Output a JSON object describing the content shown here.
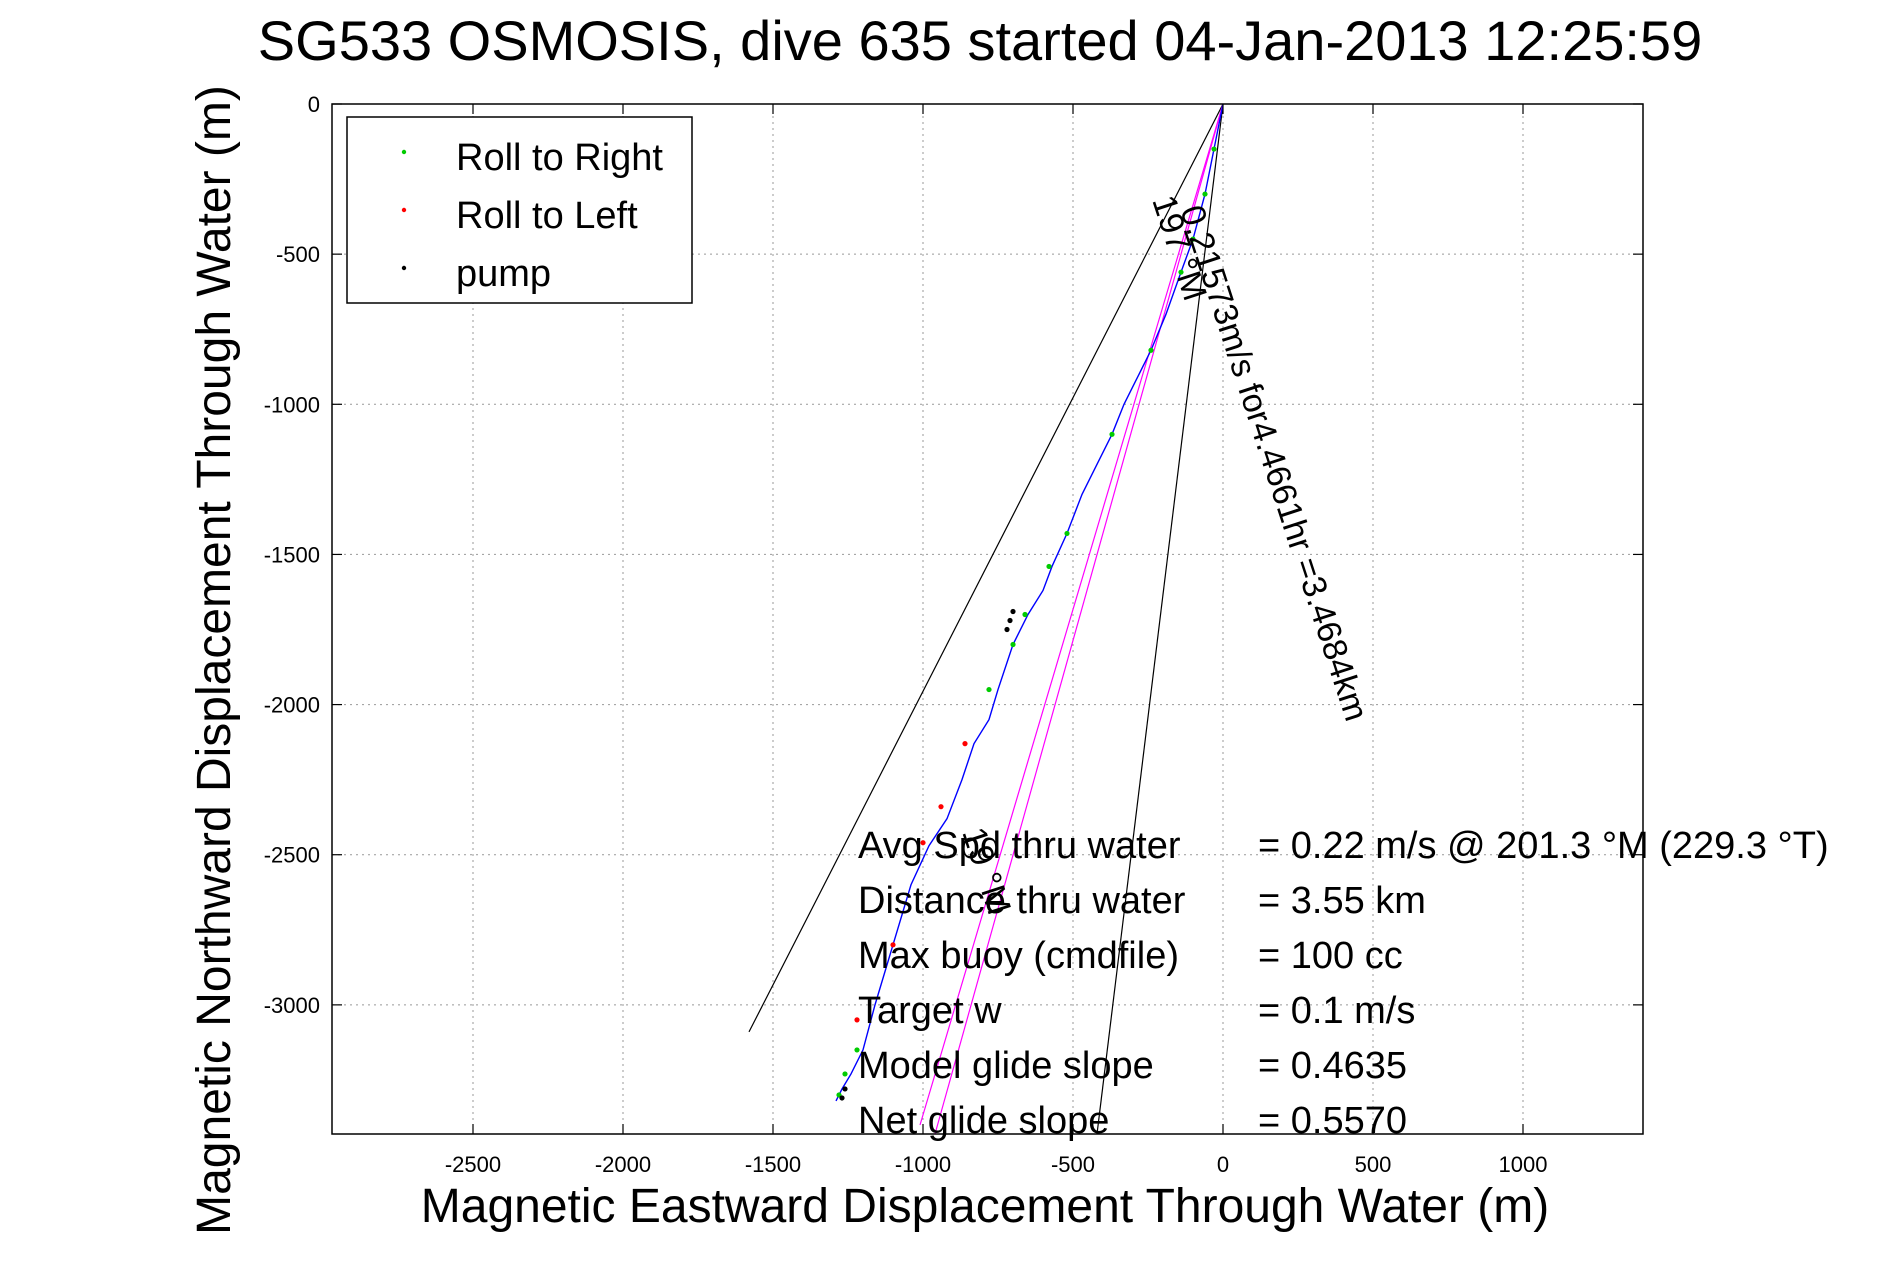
{
  "chart_data": {
    "type": "line",
    "title": "SG533 OSMOSIS, dive 635 started 04-Jan-2013 12:25:59",
    "xlabel": "Magnetic Eastward Displacement Through Water (m)",
    "ylabel": "Magnetic Northward Displacement Through Water (m)",
    "xlim": [
      -2970,
      1400
    ],
    "ylim": [
      -3430,
      0
    ],
    "xticks": [
      -2500,
      -2000,
      -1500,
      -1000,
      -500,
      0,
      500,
      1000
    ],
    "xtick_labels": [
      "-2500",
      "-2000",
      "-1500",
      "-1000",
      "-500",
      "0",
      "500",
      "1000"
    ],
    "yticks": [
      0,
      -500,
      -1000,
      -1500,
      -2000,
      -2500,
      -3000
    ],
    "ytick_labels": [
      "0",
      "-500",
      "-1000",
      "-1500",
      "-2000",
      "-2500",
      "-3000"
    ],
    "grid": true,
    "legend": {
      "placement": "top-left",
      "entries": [
        {
          "label": "Roll to Right",
          "color": "#00cc00"
        },
        {
          "label": "Roll to Left",
          "color": "#ff0000"
        },
        {
          "label": "pump",
          "color": "#000000"
        }
      ]
    },
    "series": [
      {
        "color": "#0000ff",
        "x": [
          0,
          -30,
          -60,
          -100,
          -140,
          -190,
          -240,
          -280,
          -330,
          -370,
          -420,
          -470,
          -520,
          -570,
          -600,
          -650,
          -700,
          -750,
          -780,
          -830,
          -870,
          -920,
          -980,
          -1040,
          -1100,
          -1160,
          -1200,
          -1240,
          -1270,
          -1290
        ],
        "y": [
          0,
          -150,
          -300,
          -450,
          -560,
          -700,
          -820,
          -900,
          -1000,
          -1100,
          -1200,
          -1300,
          -1430,
          -1540,
          -1620,
          -1700,
          -1800,
          -1950,
          -2050,
          -2130,
          -2250,
          -2380,
          -2470,
          -2600,
          -2800,
          -3000,
          -3150,
          -3230,
          -3280,
          -3320
        ]
      },
      {
        "name": "Roll to Right",
        "color": "#00cc00",
        "x": [
          -30,
          -60,
          -100,
          -140,
          -240,
          -370,
          -520,
          -580,
          -660,
          -700,
          -780,
          -1220,
          -1260,
          -1280
        ],
        "y": [
          -150,
          -300,
          -450,
          -560,
          -820,
          -1100,
          -1430,
          -1540,
          -1700,
          -1800,
          -1950,
          -3150,
          -3230,
          -3300
        ]
      },
      {
        "name": "Roll to Left",
        "color": "#ff0000",
        "x": [
          -860,
          -940,
          -1100,
          -1220,
          -1000
        ],
        "y": [
          -2130,
          -2340,
          -2800,
          -3050,
          -2460
        ]
      },
      {
        "name": "pump",
        "color": "#000000",
        "x": [
          -700,
          -710,
          -720,
          -1260,
          -1270
        ],
        "y": [
          -1690,
          -1720,
          -1750,
          -3280,
          -3310
        ]
      }
    ],
    "reference_lines": [
      {
        "color": "#000000",
        "x": [
          0,
          -1580
        ],
        "y": [
          0,
          -3090
        ]
      },
      {
        "color": "#000000",
        "x": [
          0,
          -420
        ],
        "y": [
          0,
          -3430
        ]
      },
      {
        "color": "#ff00ff",
        "x": [
          0,
          -1010
        ],
        "y": [
          0,
          -3400
        ]
      },
      {
        "color": "#ff00ff",
        "x": [
          0,
          -960
        ],
        "y": [
          0,
          -3430
        ]
      }
    ],
    "annotations": {
      "line_label": "0.21573m/s for4.4661hr =3.4684km",
      "heading_197": "197 °M",
      "heading_19": "19 °M"
    },
    "stats": [
      {
        "label": "Avg Spd thru water",
        "value": "=  0.22 m/s @ 201.3 °M (229.3 °T)"
      },
      {
        "label": "Distance thru water",
        "value": "=  3.55 km"
      },
      {
        "label": "Max buoy (cmdfile)",
        "value": "= 100 cc"
      },
      {
        "label": "Target w",
        "value": "= 0.1 m/s"
      },
      {
        "label": "Model glide slope",
        "value": "= 0.4635"
      },
      {
        "label": "Net glide slope",
        "value": "= 0.5570"
      }
    ]
  }
}
